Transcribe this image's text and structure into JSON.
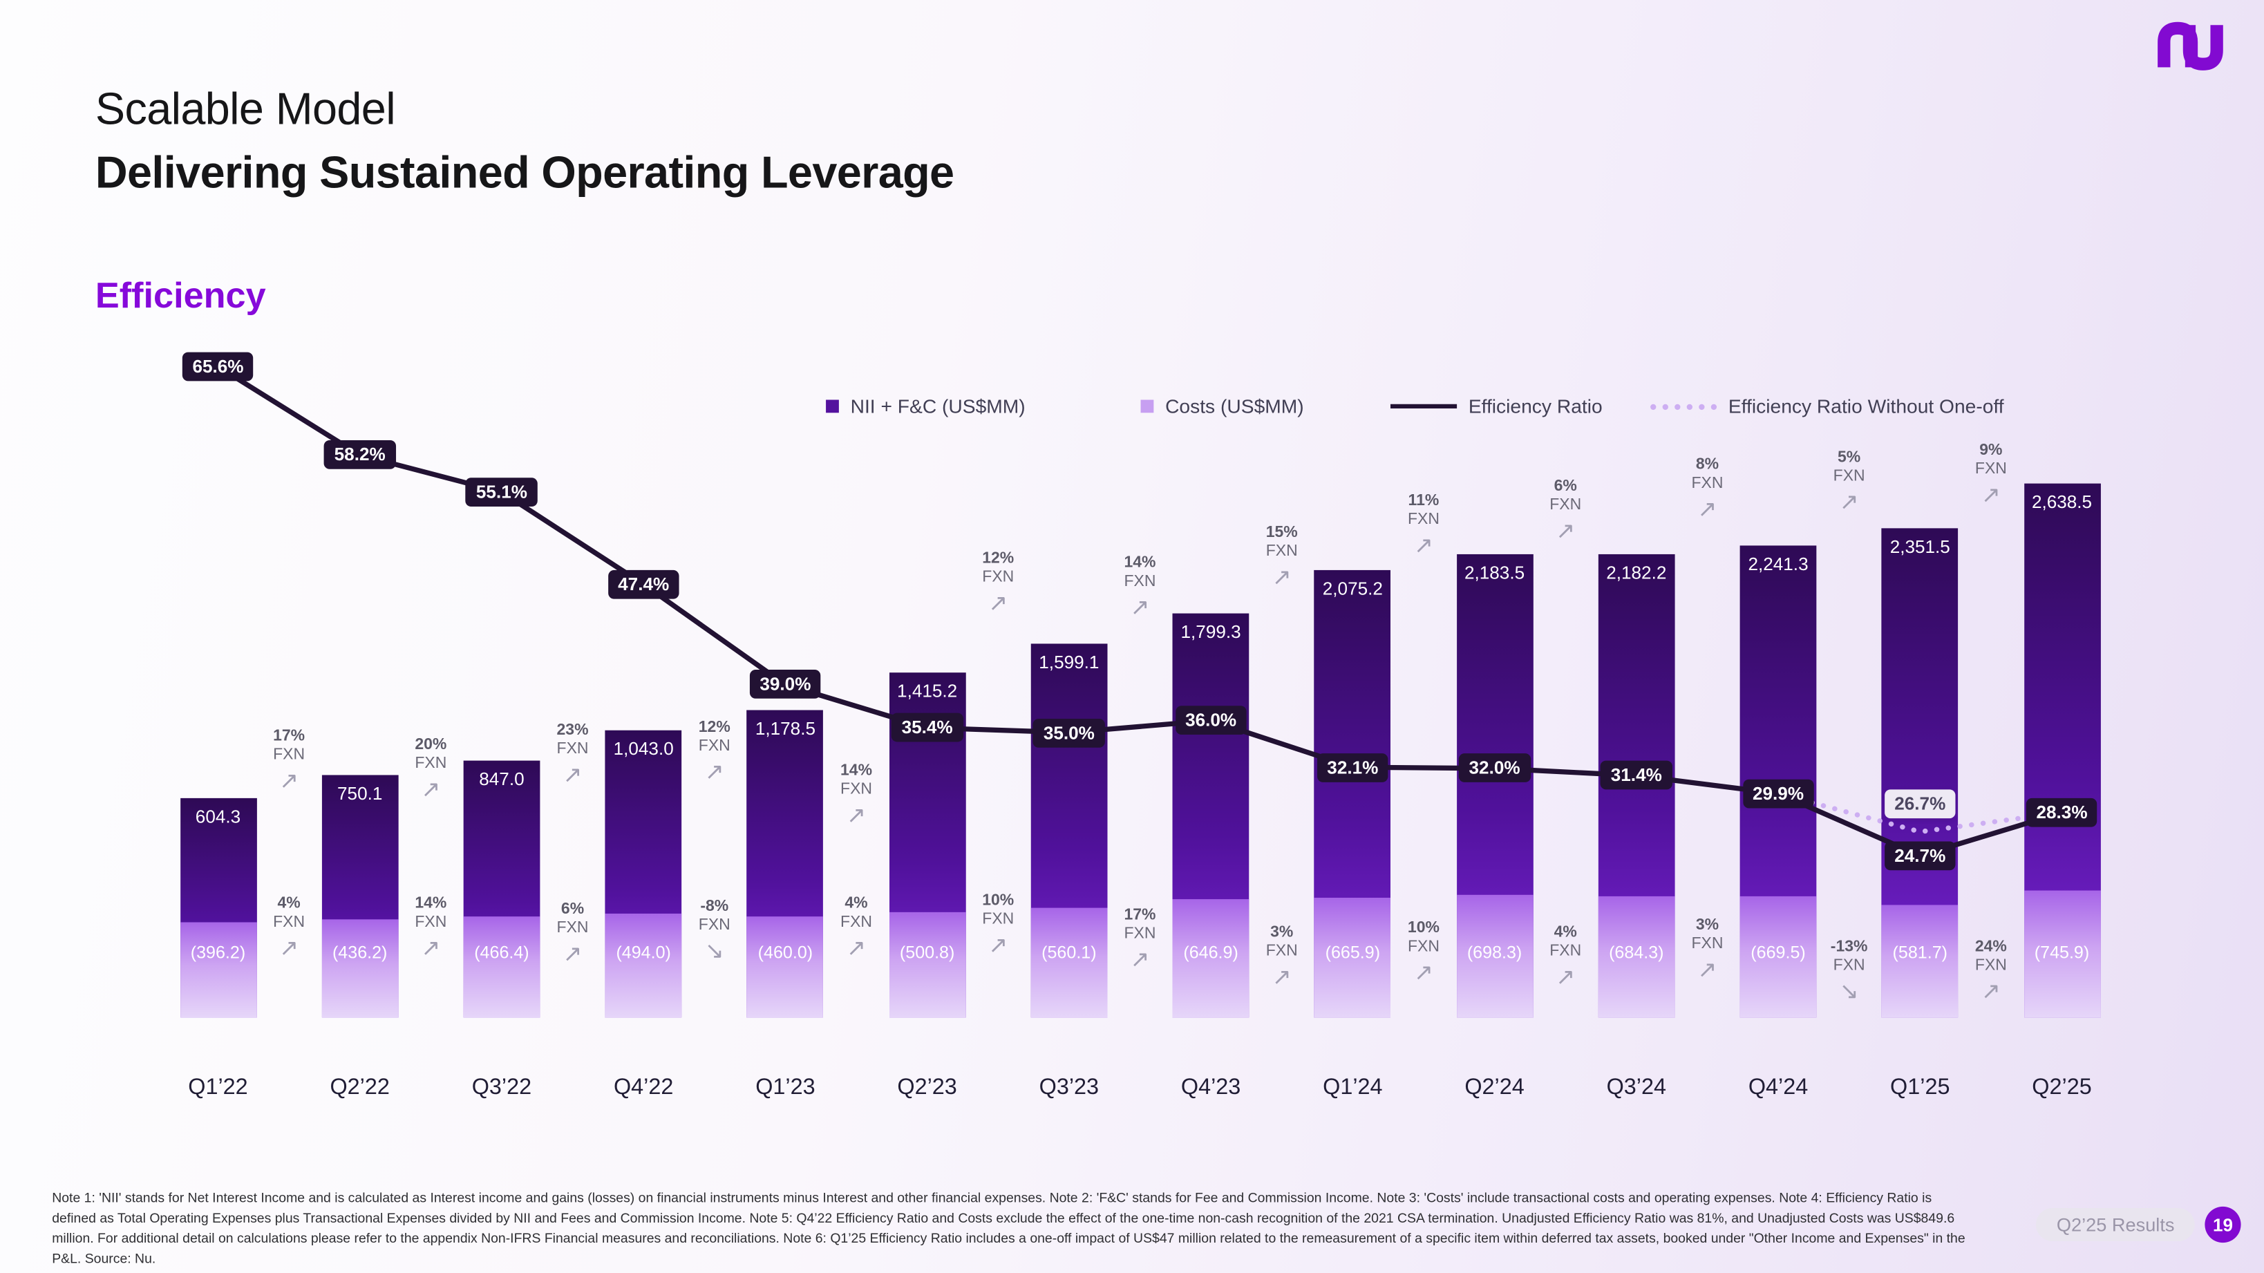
{
  "header": {
    "title_line1": "Scalable Model",
    "title_line2": "Delivering Sustained Operating Leverage",
    "section_label": "Efficiency"
  },
  "colors": {
    "brand_purple": "#820ad1",
    "bar_dark_purple": "#54129e",
    "bar_light_purple": "#c79ff1",
    "efficiency_line": "#221233",
    "dotted_line": "#cdaef2"
  },
  "legend": {
    "items": [
      {
        "label": "NII + F&C (US$MM)",
        "marker": "square",
        "color": "#54129e"
      },
      {
        "label": "Costs (US$MM)",
        "marker": "square",
        "color": "#c79ff1"
      },
      {
        "label": "Efficiency Ratio",
        "marker": "line",
        "color": "#221233"
      },
      {
        "label": "Efficiency Ratio Without One-off",
        "marker": "dotted-line",
        "color": "#cdaef2"
      }
    ]
  },
  "chart_data": {
    "type": "bar",
    "subtype": "overlaid bars with efficiency-ratio line overlay",
    "title": "Efficiency",
    "categories": [
      "Q1’22",
      "Q2’22",
      "Q3’22",
      "Q4’22",
      "Q1’23",
      "Q2’23",
      "Q3’23",
      "Q4’23",
      "Q1’24",
      "Q2’24",
      "Q3’24",
      "Q4’24",
      "Q1’25",
      "Q2’25"
    ],
    "series": [
      {
        "name": "NII + F&C (US$MM)",
        "type": "bar",
        "values": [
          604.3,
          750.1,
          847.0,
          1043.0,
          1178.5,
          1415.2,
          1599.1,
          1799.3,
          2075.2,
          2183.5,
          2182.2,
          2241.3,
          2351.5,
          2638.5
        ],
        "labels": [
          "604.3",
          "750.1",
          "847.0",
          "1,043.0",
          "1,178.5",
          "1,415.2",
          "1,599.1",
          "1,799.3",
          "2,075.2",
          "2,183.5",
          "2,182.2",
          "2,241.3",
          "2,351.5",
          "2,638.5"
        ]
      },
      {
        "name": "Costs (US$MM)",
        "type": "bar",
        "values": [
          396.2,
          436.2,
          466.4,
          494.0,
          460.0,
          500.8,
          560.1,
          646.9,
          665.9,
          698.3,
          684.3,
          669.5,
          581.7,
          745.9
        ],
        "labels": [
          "(396.2)",
          "(436.2)",
          "(466.4)",
          "(494.0)",
          "(460.0)",
          "(500.8)",
          "(560.1)",
          "(646.9)",
          "(665.9)",
          "(698.3)",
          "(684.3)",
          "(669.5)",
          "(581.7)",
          "(745.9)"
        ]
      },
      {
        "name": "Efficiency Ratio",
        "type": "line",
        "unit": "%",
        "values": [
          65.6,
          58.2,
          55.1,
          47.4,
          39.0,
          35.4,
          35.0,
          36.0,
          32.1,
          32.0,
          31.4,
          29.9,
          24.7,
          28.3
        ],
        "labels": [
          "65.6%",
          "58.2%",
          "55.1%",
          "47.4%",
          "39.0%",
          "35.4%",
          "35.0%",
          "36.0%",
          "32.1%",
          "32.0%",
          "31.4%",
          "29.9%",
          "24.7%",
          "28.3%"
        ]
      },
      {
        "name": "Efficiency Ratio Without One-off",
        "type": "dotted-line",
        "unit": "%",
        "points": [
          {
            "category": "Q4’24",
            "value": 29.9
          },
          {
            "category": "Q1’25",
            "value": 26.7,
            "label": "26.7%"
          },
          {
            "category": "Q2’25",
            "value": 28.3
          }
        ]
      }
    ],
    "growth_annotations": {
      "suffix": "FXN",
      "nii_fxn": [
        "17%",
        "20%",
        "23%",
        "12%",
        "14%",
        "12%",
        "14%",
        "15%",
        "11%",
        "6%",
        "8%",
        "5%",
        "9%"
      ],
      "costs_fxn": [
        "4%",
        "14%",
        "6%",
        "-8%",
        "4%",
        "10%",
        "17%",
        "3%",
        "10%",
        "4%",
        "3%",
        "-13%",
        "24%"
      ]
    },
    "legend_position": "top-center",
    "grid": false
  },
  "footnotes": "Note 1: 'NII' stands for Net Interest Income and is calculated as Interest income and gains (losses) on financial instruments minus Interest and other financial expenses. Note 2: 'F&C' stands for Fee and Commission Income. Note 3: 'Costs' include transactional costs and operating expenses. Note 4: Efficiency Ratio is defined as Total Operating Expenses plus Transactional Expenses divided by NII and Fees and Commission Income. Note 5: Q4’22 Efficiency Ratio and Costs exclude the effect of the one-time non-cash recognition of the 2021 CSA termination. Unadjusted Efficiency Ratio was 81%, and Unadjusted Costs was US$849.6 million. For additional detail on calculations please refer to the appendix Non-IFRS Financial measures and reconciliations. Note 6: Q1’25 Efficiency Ratio includes a one-off impact of US$47 million related to the remeasurement of a specific item within deferred tax assets, booked under \"Other Income and Expenses\" in the P&L. Source: Nu.",
  "footer": {
    "results_label": "Q2’25 Results",
    "page_number": "19"
  }
}
